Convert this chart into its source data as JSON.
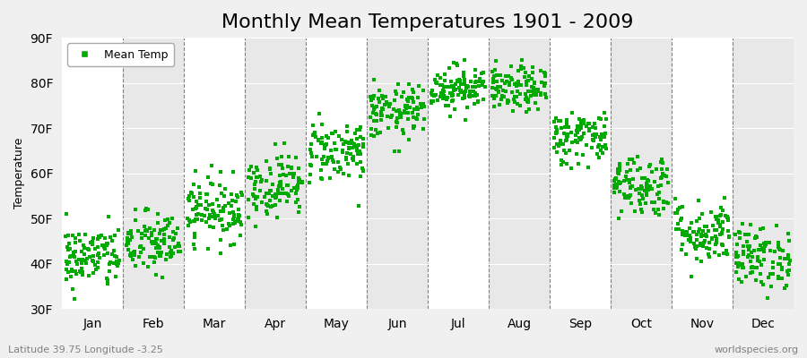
{
  "title": "Monthly Mean Temperatures 1901 - 2009",
  "ylabel": "Temperature",
  "subtitle_left": "Latitude 39.75 Longitude -3.25",
  "subtitle_right": "worldspecies.org",
  "ylim": [
    30,
    90
  ],
  "yticks": [
    30,
    40,
    50,
    60,
    70,
    80,
    90
  ],
  "ytick_labels": [
    "30F",
    "40F",
    "50F",
    "60F",
    "70F",
    "80F",
    "90F"
  ],
  "months": [
    "Jan",
    "Feb",
    "Mar",
    "Apr",
    "May",
    "Jun",
    "Jul",
    "Aug",
    "Sep",
    "Oct",
    "Nov",
    "Dec"
  ],
  "month_centers": [
    0.5,
    1.5,
    2.5,
    3.5,
    4.5,
    5.5,
    6.5,
    7.5,
    8.5,
    9.5,
    10.5,
    11.5
  ],
  "marker_color": "#00AA00",
  "marker_size": 12,
  "background_color": "#f0f0f0",
  "band_colors": [
    "#ffffff",
    "#e8e8e8"
  ],
  "years": 109,
  "mean_temps_f": [
    41.5,
    44.5,
    52.0,
    57.5,
    65.0,
    73.5,
    79.0,
    78.5,
    68.0,
    57.5,
    47.0,
    41.5
  ],
  "std_temps_f": [
    3.5,
    3.5,
    3.5,
    3.5,
    3.5,
    3.0,
    2.5,
    2.5,
    3.0,
    3.5,
    3.5,
    3.5
  ],
  "title_fontsize": 16,
  "axis_fontsize": 10,
  "label_fontsize": 9
}
